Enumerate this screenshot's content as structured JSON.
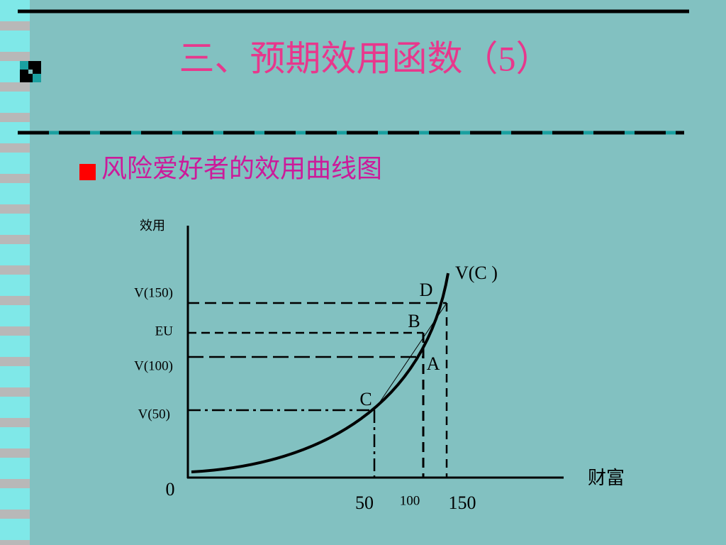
{
  "title": "三、预期效用函数（5）",
  "bullet": "风险爱好者的效用曲线图",
  "diagram": {
    "y_axis_label": "效用",
    "x_axis_label": "财富",
    "origin": "0",
    "curve_label": "V(C )",
    "y_labels": [
      "V(150)",
      "EU",
      "V(100)",
      "V(50)"
    ],
    "x_labels": [
      "50",
      "100",
      "150"
    ],
    "points": [
      "D",
      "B",
      "A",
      "C"
    ]
  }
}
